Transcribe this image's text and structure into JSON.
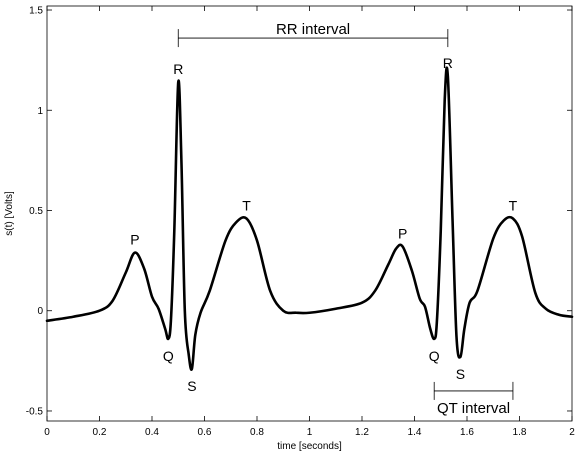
{
  "chart_data": {
    "type": "line",
    "title": "",
    "xlabel": "time [seconds]",
    "ylabel": "s(t) [Volts]",
    "xlim": [
      0,
      2
    ],
    "ylim": [
      -0.55,
      1.52
    ],
    "x_ticks": [
      "0",
      "0.2",
      "0.4",
      "0.6",
      "0.8",
      "1",
      "1.2",
      "1.4",
      "1.6",
      "1.8",
      "2"
    ],
    "y_ticks": [
      "-0.5",
      "0",
      "0.5",
      "1",
      "1.5"
    ],
    "grid": false,
    "series": [
      {
        "x": [
          0,
          0.1,
          0.2,
          0.25,
          0.3,
          0.335,
          0.37,
          0.4,
          0.425,
          0.45,
          0.462,
          0.472,
          0.485,
          0.5,
          0.512,
          0.525,
          0.54,
          0.552,
          0.565,
          0.585,
          0.62,
          0.68,
          0.72,
          0.76,
          0.8,
          0.85,
          0.9,
          0.95,
          1.0,
          1.1,
          1.2,
          1.25,
          1.3,
          1.33,
          1.355,
          1.39,
          1.42,
          1.44,
          1.46,
          1.475,
          1.485,
          1.5,
          1.515,
          1.527,
          1.545,
          1.56,
          1.575,
          1.59,
          1.61,
          1.64,
          1.7,
          1.74,
          1.775,
          1.81,
          1.86,
          1.9,
          1.95,
          2.0
        ],
        "y": [
          -0.05,
          -0.03,
          0.0,
          0.05,
          0.19,
          0.29,
          0.21,
          0.07,
          0.01,
          -0.09,
          -0.14,
          -0.05,
          0.4,
          1.14,
          0.75,
          0.0,
          -0.22,
          -0.29,
          -0.12,
          -0.01,
          0.1,
          0.35,
          0.44,
          0.46,
          0.35,
          0.1,
          0.0,
          -0.01,
          -0.01,
          0.01,
          0.04,
          0.1,
          0.23,
          0.31,
          0.32,
          0.2,
          0.06,
          0.02,
          -0.09,
          -0.14,
          -0.06,
          0.4,
          1.05,
          1.17,
          0.45,
          -0.13,
          -0.23,
          -0.09,
          0.04,
          0.1,
          0.36,
          0.45,
          0.46,
          0.37,
          0.09,
          0.01,
          -0.02,
          -0.03
        ]
      }
    ],
    "point_labels": [
      {
        "label": "P",
        "x": 0.335,
        "y": 0.29
      },
      {
        "label": "Q",
        "x": 0.462,
        "y": -0.14
      },
      {
        "label": "R",
        "x": 0.5,
        "y": 1.14
      },
      {
        "label": "S",
        "x": 0.552,
        "y": -0.29
      },
      {
        "label": "T",
        "x": 0.76,
        "y": 0.46
      },
      {
        "label": "P",
        "x": 1.355,
        "y": 0.32
      },
      {
        "label": "Q",
        "x": 1.475,
        "y": -0.14
      },
      {
        "label": "R",
        "x": 1.527,
        "y": 1.17
      },
      {
        "label": "S",
        "x": 1.575,
        "y": -0.23
      },
      {
        "label": "T",
        "x": 1.775,
        "y": 0.46
      }
    ],
    "intervals": [
      {
        "label": "RR interval",
        "x_start": 0.5,
        "x_end": 1.527,
        "y": 1.36
      },
      {
        "label": "QT interval",
        "x_start": 1.475,
        "x_end": 1.775,
        "y": -0.4
      }
    ]
  }
}
